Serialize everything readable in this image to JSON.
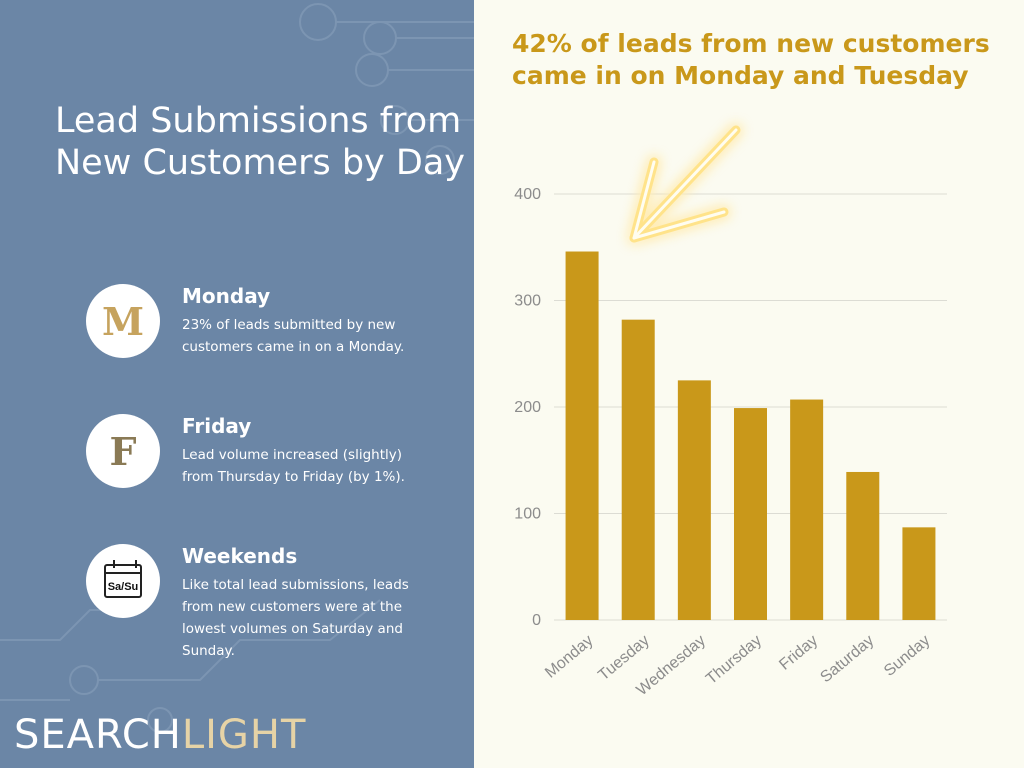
{
  "left_panel": {
    "title": "Lead Submissions from New Customers by Day",
    "items": [
      {
        "icon": "letter-m-icon",
        "icon_text": "M",
        "heading": "Monday",
        "text": "23% of leads submitted by new customers came in on a Monday."
      },
      {
        "icon": "letter-f-icon",
        "icon_text": "F",
        "heading": "Friday",
        "text": "Lead volume increased (slightly) from Thursday to Friday (by 1%)."
      },
      {
        "icon": "calendar-icon",
        "icon_text": "Sa/Su",
        "heading": "Weekends",
        "text": "Like total lead submissions, leads from new customers were at the lowest volumes on Saturday and Sunday."
      }
    ],
    "logo": {
      "part1": "SEARCH",
      "part2": "LIGHT"
    }
  },
  "headline": "42% of leads from new customers came in on Monday and Tuesday",
  "colors": {
    "panel": "#6b86a6",
    "bar": "#c9981a",
    "headline": "#c9981a",
    "background": "#fbfbf1"
  },
  "chart_data": {
    "type": "bar",
    "categories": [
      "Monday",
      "Tuesday",
      "Wednesday",
      "Thursday",
      "Friday",
      "Saturday",
      "Sunday"
    ],
    "values": [
      346,
      282,
      225,
      199,
      207,
      139,
      87
    ],
    "yticks": [
      0,
      100,
      200,
      300,
      400
    ],
    "ylim": [
      0,
      400
    ],
    "grid": true,
    "annotation": "glowing-arrow-icon pointing at Monday bar"
  }
}
